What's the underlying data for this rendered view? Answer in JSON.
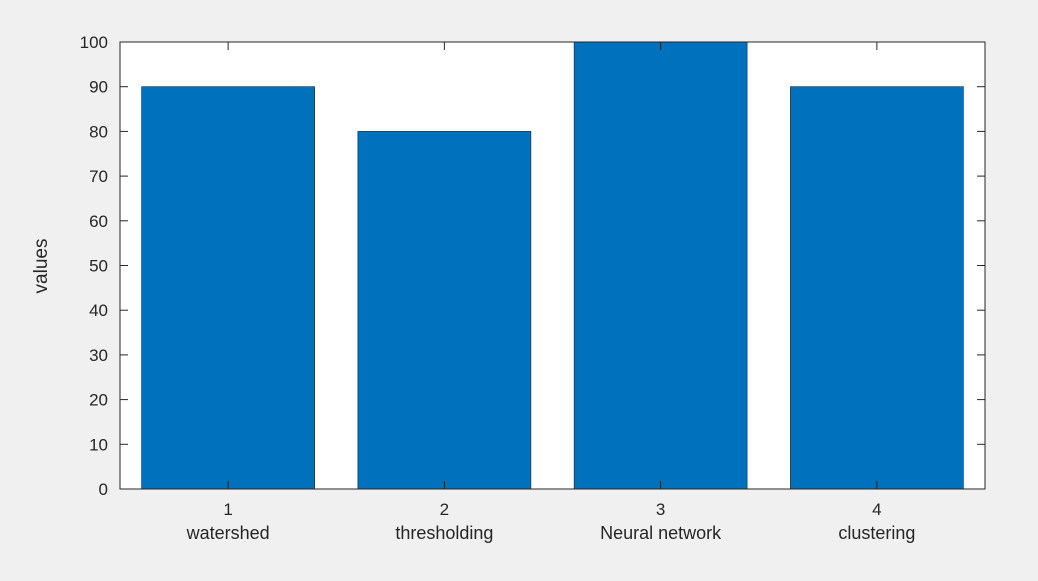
{
  "chart_data": {
    "type": "bar",
    "ylabel": "values",
    "categories": [
      "watershed",
      "thresholding",
      "Neural network",
      "clustering"
    ],
    "x_ticks": [
      "1",
      "2",
      "3",
      "4"
    ],
    "values": [
      90,
      80,
      100,
      90
    ],
    "ylim": [
      0,
      100
    ],
    "yticks": [
      0,
      10,
      20,
      30,
      40,
      50,
      60,
      70,
      80,
      90,
      100
    ],
    "grid": false,
    "legend": "none",
    "bar_color": "#0072bd"
  }
}
